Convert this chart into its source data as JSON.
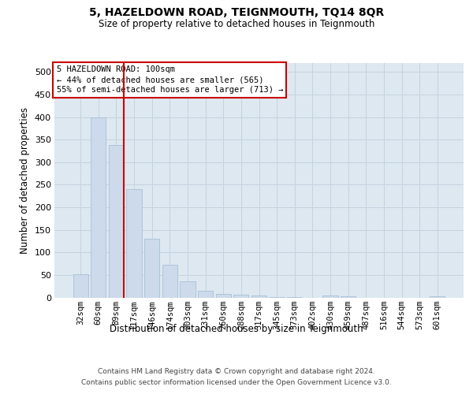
{
  "title": "5, HAZELDOWN ROAD, TEIGNMOUTH, TQ14 8QR",
  "subtitle": "Size of property relative to detached houses in Teignmouth",
  "xlabel": "Distribution of detached houses by size in Teignmouth",
  "ylabel": "Number of detached properties",
  "footer_line1": "Contains HM Land Registry data © Crown copyright and database right 2024.",
  "footer_line2": "Contains public sector information licensed under the Open Government Licence v3.0.",
  "bar_color": "#ccdaeb",
  "bar_edge_color": "#a8c0d8",
  "grid_color": "#c5d3e0",
  "background_color": "#dde8f0",
  "vline_color": "#cc0000",
  "categories": [
    "32sqm",
    "60sqm",
    "89sqm",
    "117sqm",
    "146sqm",
    "174sqm",
    "203sqm",
    "231sqm",
    "260sqm",
    "288sqm",
    "317sqm",
    "345sqm",
    "373sqm",
    "402sqm",
    "430sqm",
    "459sqm",
    "487sqm",
    "516sqm",
    "544sqm",
    "573sqm",
    "601sqm"
  ],
  "values": [
    52,
    400,
    338,
    240,
    130,
    72,
    35,
    15,
    7,
    6,
    4,
    1,
    1,
    0,
    5,
    2,
    0,
    0,
    0,
    0,
    3
  ],
  "vline_index": 2,
  "annotation_text_line1": "5 HAZELDOWN ROAD: 100sqm",
  "annotation_text_line2": "← 44% of detached houses are smaller (565)",
  "annotation_text_line3": "55% of semi-detached houses are larger (713) →",
  "ylim": [
    0,
    520
  ],
  "yticks": [
    0,
    50,
    100,
    150,
    200,
    250,
    300,
    350,
    400,
    450,
    500
  ],
  "title_fontsize": 10,
  "subtitle_fontsize": 8.5,
  "label_fontsize": 8.5,
  "tick_fontsize": 7.5,
  "footer_fontsize": 6.5,
  "ann_fontsize": 7.5
}
